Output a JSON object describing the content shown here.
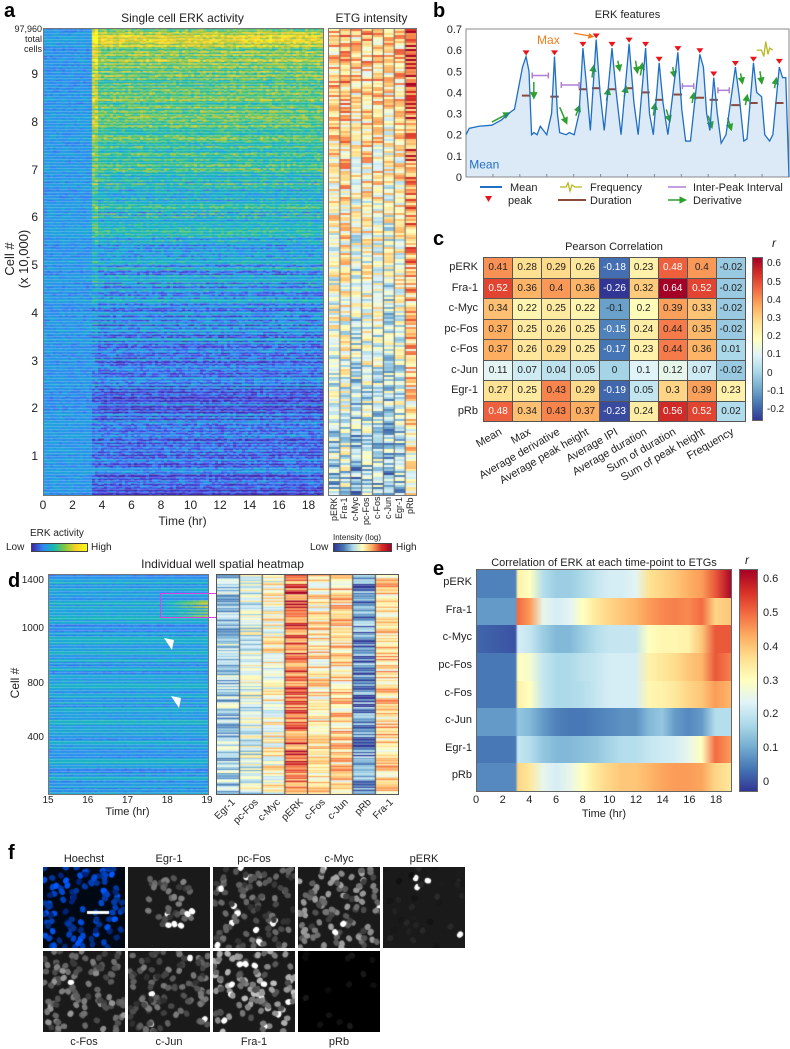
{
  "panel_labels": {
    "a": "a",
    "b": "b",
    "c": "c",
    "d": "d",
    "e": "e",
    "f": "f"
  },
  "panel_a": {
    "title_heatmap": "Single cell ERK activity",
    "title_etg": "ETG intensity",
    "total_cells": [
      "97,960",
      "total",
      "cells"
    ],
    "ylabel": [
      "Cell #",
      "(x 10,000)"
    ],
    "yticks": [
      "1",
      "2",
      "3",
      "4",
      "5",
      "6",
      "7",
      "8",
      "9"
    ],
    "xticks": [
      "0",
      "2",
      "4",
      "6",
      "8",
      "10",
      "12",
      "14",
      "16",
      "18"
    ],
    "xlabel": "Time (hr)",
    "etg_columns": [
      "pERK",
      "Fra-1",
      "c-Myc",
      "pc-Fos",
      "c-Fos",
      "c-Jun",
      "Egr-1",
      "pRb"
    ],
    "erk_colorbar": {
      "title": "ERK activity",
      "low": "Low",
      "high": "High"
    },
    "etg_colorbar": {
      "title": "Intensity (log)",
      "low": "Low",
      "high": "High"
    }
  },
  "panel_d": {
    "title": "Individual well spatial heatmap",
    "ylabel": "Cell #",
    "yticks": [
      "1400",
      "1000",
      "800",
      "400"
    ],
    "xticks": [
      "15",
      "16",
      "17",
      "18",
      "19"
    ],
    "xlabel": "Time (hr)",
    "columns": [
      "Egr-1",
      "pc-Fos",
      "c-Myc",
      "pERK",
      "c-Fos",
      "c-Jun",
      "pRb",
      "Fra-1"
    ]
  },
  "panel_f": {
    "top": [
      "Hoechst",
      "Egr-1",
      "pc-Fos",
      "c-Myc",
      "pERK"
    ],
    "bottom": [
      "c-Fos",
      "c-Jun",
      "Fra-1",
      "pRb"
    ]
  },
  "colors": {
    "trace": "#1f6fc4",
    "fill": "#dce9f6",
    "peak": "#e8141b",
    "duration": "#8b4a3c",
    "ipi": "#b07fd6",
    "derivative": "#2ea02e",
    "max": "#f07d1a",
    "frequency": "#b8b820",
    "magenta": "#e040e0"
  },
  "chart_data": [
    {
      "id": "erk_features",
      "type": "line",
      "title": "ERK features",
      "ylim": [
        0,
        0.7
      ],
      "yticks": [
        "0",
        "0.1",
        "0.2",
        "0.3",
        "0.4",
        "0.5",
        "0.6",
        "0.7"
      ],
      "xlim": [
        0,
        100
      ],
      "annotations": {
        "mean": "Mean",
        "max": "Max"
      },
      "legend": {
        "mean": "Mean",
        "peak": "peak",
        "frequency": "Frequency",
        "duration": "Duration",
        "ipi": "Inter-Peak Interval",
        "derivative": "Derivative"
      },
      "mean_trace": [
        [
          0,
          0.2
        ],
        [
          1,
          0.23
        ],
        [
          4,
          0.24
        ],
        [
          8,
          0.245
        ],
        [
          11,
          0.27
        ],
        [
          14,
          0.31
        ],
        [
          15,
          0.32
        ],
        [
          16,
          0.4
        ],
        [
          17.5,
          0.52
        ],
        [
          18.6,
          0.57
        ],
        [
          19.5,
          0.5
        ],
        [
          20.3,
          0.2
        ],
        [
          21,
          0.21
        ],
        [
          22,
          0.2
        ],
        [
          23,
          0.24
        ],
        [
          24,
          0.22
        ],
        [
          25,
          0.2
        ],
        [
          26.5,
          0.3
        ],
        [
          27.4,
          0.57
        ],
        [
          28.3,
          0.3
        ],
        [
          29,
          0.21
        ],
        [
          31,
          0.2
        ],
        [
          32,
          0.21
        ],
        [
          33.5,
          0.2
        ],
        [
          35,
          0.3
        ],
        [
          36.2,
          0.61
        ],
        [
          37.2,
          0.45
        ],
        [
          38.5,
          0.22
        ],
        [
          40.3,
          0.65
        ],
        [
          41.5,
          0.4
        ],
        [
          42.8,
          0.22
        ],
        [
          45.2,
          0.61
        ],
        [
          46.5,
          0.4
        ],
        [
          48,
          0.2
        ],
        [
          50.5,
          0.63
        ],
        [
          52,
          0.35
        ],
        [
          53.3,
          0.2
        ],
        [
          55.6,
          0.61
        ],
        [
          56.8,
          0.3
        ],
        [
          58,
          0.2
        ],
        [
          59.8,
          0.54
        ],
        [
          61,
          0.35
        ],
        [
          62.5,
          0.2
        ],
        [
          65.6,
          0.59
        ],
        [
          66.8,
          0.32
        ],
        [
          68,
          0.17
        ],
        [
          69.5,
          0.17
        ],
        [
          72.4,
          0.58
        ],
        [
          73.5,
          0.52
        ],
        [
          74.5,
          0.3
        ],
        [
          75.5,
          0.22
        ],
        [
          76.7,
          0.47
        ],
        [
          77.8,
          0.3
        ],
        [
          79,
          0.16
        ],
        [
          80.5,
          0.2
        ],
        [
          83.4,
          0.52
        ],
        [
          84.6,
          0.38
        ],
        [
          86,
          0.17
        ],
        [
          87,
          0.18
        ],
        [
          89,
          0.54
        ],
        [
          90,
          0.4
        ],
        [
          91.5,
          0.38
        ],
        [
          92.5,
          0.2
        ],
        [
          94,
          0.17
        ],
        [
          95,
          0.2
        ],
        [
          97,
          0.52
        ],
        [
          98,
          0.47
        ],
        [
          99,
          0.47
        ],
        [
          100,
          0
        ]
      ],
      "peaks": [
        [
          18.6,
          0.58
        ],
        [
          27.4,
          0.58
        ],
        [
          36.2,
          0.62
        ],
        [
          40.3,
          0.66
        ],
        [
          45.2,
          0.62
        ],
        [
          50.5,
          0.64
        ],
        [
          55.6,
          0.62
        ],
        [
          59.8,
          0.55
        ],
        [
          65.6,
          0.6
        ],
        [
          72.4,
          0.59
        ],
        [
          76.7,
          0.48
        ],
        [
          83.4,
          0.53
        ],
        [
          89,
          0.55
        ],
        [
          97,
          0.54
        ]
      ],
      "durations": [
        0.385,
        0.38,
        0.415,
        0.42,
        0.415,
        0.42,
        0.4,
        0.365,
        0.39,
        0.375,
        0.365,
        0.34,
        0.35,
        0.35
      ],
      "ipi": [
        [
          20.5,
          25.5,
          0.48
        ],
        [
          29.5,
          35,
          0.435
        ],
        [
          67,
          70.5,
          0.43
        ],
        [
          78,
          81.5,
          0.41
        ]
      ],
      "derivatives": [
        [
          8,
          0.26,
          13,
          0.3
        ],
        [
          21,
          0.45,
          21,
          0.38
        ],
        [
          29,
          0.33,
          31,
          0.26
        ],
        [
          34,
          0.29,
          35,
          0.33
        ],
        [
          39,
          0.47,
          39.5,
          0.52
        ],
        [
          43.5,
          0.36,
          44,
          0.41
        ],
        [
          47,
          0.55,
          47.5,
          0.51
        ],
        [
          49,
          0.38,
          49.5,
          0.42
        ],
        [
          52.5,
          0.55,
          53,
          0.5
        ],
        [
          54,
          0.48,
          54.5,
          0.53
        ],
        [
          58,
          0.29,
          58.5,
          0.34
        ],
        [
          62,
          0.32,
          63,
          0.27
        ],
        [
          64,
          0.52,
          64.5,
          0.48
        ],
        [
          70,
          0.35,
          70.5,
          0.39
        ],
        [
          75,
          0.29,
          76,
          0.24
        ],
        [
          81,
          0.28,
          82,
          0.23
        ],
        [
          85,
          0.49,
          85.5,
          0.45
        ],
        [
          86.5,
          0.34,
          87,
          0.38
        ],
        [
          91,
          0.5,
          91.5,
          0.45
        ],
        [
          95.5,
          0.42,
          96,
          0.46
        ]
      ]
    },
    {
      "id": "pearson",
      "type": "heatmap",
      "title": "Pearson Correlation",
      "colorbar_label": "r",
      "colorbar_ticks": [
        "0.6",
        "0.5",
        "0.4",
        "0.3",
        "0.2",
        "0.1",
        "0",
        "-0.1",
        "-0.2"
      ],
      "vlim": [
        -0.26,
        0.64
      ],
      "rows": [
        "pERK",
        "Fra-1",
        "c-Myc",
        "pc-Fos",
        "c-Fos",
        "c-Jun",
        "Egr-1",
        "pRb"
      ],
      "columns": [
        "Mean",
        "Max",
        "Average derivative",
        "Average peak height",
        "Average IPI",
        "Average duration",
        "Sum of duration",
        "Sum of peak height",
        "Frequency"
      ],
      "values": [
        [
          0.41,
          0.28,
          0.29,
          0.26,
          -0.18,
          0.23,
          0.48,
          0.4,
          -0.02
        ],
        [
          0.52,
          0.36,
          0.4,
          0.36,
          -0.26,
          0.32,
          0.64,
          0.52,
          -0.02
        ],
        [
          0.34,
          0.22,
          0.25,
          0.22,
          -0.1,
          0.2,
          0.39,
          0.33,
          -0.02
        ],
        [
          0.37,
          0.25,
          0.26,
          0.25,
          -0.15,
          0.24,
          0.44,
          0.35,
          -0.02
        ],
        [
          0.37,
          0.26,
          0.29,
          0.25,
          -0.17,
          0.23,
          0.44,
          0.36,
          0.01
        ],
        [
          0.11,
          0.07,
          0.04,
          0.05,
          0,
          0.1,
          0.12,
          0.07,
          -0.02
        ],
        [
          0.27,
          0.25,
          0.43,
          0.29,
          -0.19,
          0.05,
          0.3,
          0.39,
          0.23
        ],
        [
          0.48,
          0.34,
          0.43,
          0.37,
          -0.23,
          0.24,
          0.56,
          0.52,
          0.02
        ]
      ]
    },
    {
      "id": "timepoint_correlation",
      "type": "heatmap",
      "title": "Correlation of ERK at each time-point to ETGs",
      "xlabel": "Time (hr)",
      "xticks": [
        "0",
        "2",
        "4",
        "6",
        "8",
        "10",
        "12",
        "14",
        "16",
        "18"
      ],
      "colorbar_label": "r",
      "colorbar_ticks": [
        "0.6",
        "0.5",
        "0.4",
        "0.3",
        "0.2",
        "0.1",
        "0"
      ],
      "vlim": [
        -0.03,
        0.63
      ],
      "times": [
        0,
        2.9,
        3.1,
        4,
        5,
        6,
        7,
        8,
        9,
        10,
        11,
        12,
        13,
        14,
        15,
        16,
        17,
        18,
        19.2
      ],
      "rows": [
        "pERK",
        "Fra-1",
        "c-Myc",
        "pc-Fos",
        "c-Fos",
        "c-Jun",
        "Egr-1",
        "pRb"
      ],
      "values": [
        [
          0.05,
          0.05,
          0.33,
          0.3,
          0.18,
          0.15,
          0.15,
          0.17,
          0.2,
          0.22,
          0.22,
          0.24,
          0.36,
          0.38,
          0.4,
          0.43,
          0.45,
          0.52,
          0.62
        ],
        [
          0.08,
          0.08,
          0.5,
          0.45,
          0.25,
          0.22,
          0.24,
          0.3,
          0.35,
          0.38,
          0.4,
          0.42,
          0.45,
          0.47,
          0.48,
          0.47,
          0.5,
          0.38,
          0.4
        ],
        [
          0.02,
          0.0,
          0.22,
          0.2,
          0.15,
          0.12,
          0.12,
          0.15,
          0.18,
          0.2,
          0.2,
          0.2,
          0.3,
          0.32,
          0.32,
          0.33,
          0.4,
          0.52,
          0.52
        ],
        [
          0.04,
          0.04,
          0.3,
          0.28,
          0.2,
          0.17,
          0.17,
          0.19,
          0.2,
          0.22,
          0.22,
          0.22,
          0.33,
          0.35,
          0.37,
          0.4,
          0.42,
          0.52,
          0.48
        ],
        [
          0.04,
          0.04,
          0.33,
          0.3,
          0.2,
          0.17,
          0.17,
          0.18,
          0.2,
          0.22,
          0.22,
          0.22,
          0.32,
          0.33,
          0.35,
          0.38,
          0.4,
          0.45,
          0.42
        ],
        [
          0.08,
          0.08,
          0.14,
          0.12,
          0.08,
          0.05,
          0.04,
          0.04,
          0.05,
          0.06,
          0.07,
          0.07,
          0.12,
          0.14,
          0.08,
          0.06,
          0.08,
          0.18,
          0.18
        ],
        [
          0.04,
          0.04,
          0.2,
          0.18,
          0.14,
          0.12,
          0.12,
          0.13,
          0.14,
          0.16,
          0.18,
          0.18,
          0.2,
          0.21,
          0.22,
          0.25,
          0.3,
          0.5,
          0.45
        ],
        [
          0.06,
          0.06,
          0.38,
          0.35,
          0.25,
          0.22,
          0.25,
          0.3,
          0.35,
          0.38,
          0.4,
          0.4,
          0.42,
          0.44,
          0.45,
          0.45,
          0.44,
          0.38,
          0.35
        ]
      ]
    }
  ]
}
